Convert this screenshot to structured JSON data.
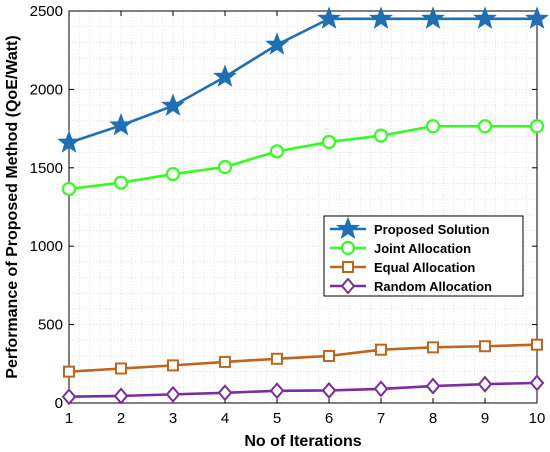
{
  "chart_data": {
    "type": "line",
    "title": "",
    "xlabel": "No of Iterations",
    "ylabel": "Performance of Proposed Method (QoE/Watt)",
    "x": [
      1,
      2,
      3,
      4,
      5,
      6,
      7,
      8,
      9,
      10
    ],
    "xlim": [
      1,
      10
    ],
    "ylim": [
      0,
      2500
    ],
    "xticks": [
      1,
      2,
      3,
      4,
      5,
      6,
      7,
      8,
      9,
      10
    ],
    "yticks": [
      0,
      500,
      1000,
      1500,
      2000,
      2500
    ],
    "grid": true,
    "legend_position": "right-middle",
    "series": [
      {
        "name": "Proposed Solution",
        "marker": "star",
        "color": "#1f6fb5",
        "values": [
          1660,
          1770,
          1895,
          2080,
          2285,
          2450,
          2450,
          2450,
          2450,
          2450
        ]
      },
      {
        "name": "Joint Allocation",
        "marker": "circle",
        "color": "#33ff1f",
        "values": [
          1365,
          1405,
          1460,
          1505,
          1605,
          1665,
          1705,
          1765,
          1765,
          1765
        ]
      },
      {
        "name": "Equal Allocation",
        "marker": "square",
        "color": "#c0651d",
        "values": [
          200,
          220,
          240,
          262,
          282,
          300,
          340,
          355,
          362,
          372
        ]
      },
      {
        "name": "Random Allocation",
        "marker": "diamond",
        "color": "#7a2d9c",
        "values": [
          40,
          45,
          55,
          65,
          78,
          80,
          90,
          108,
          120,
          128
        ]
      }
    ]
  }
}
